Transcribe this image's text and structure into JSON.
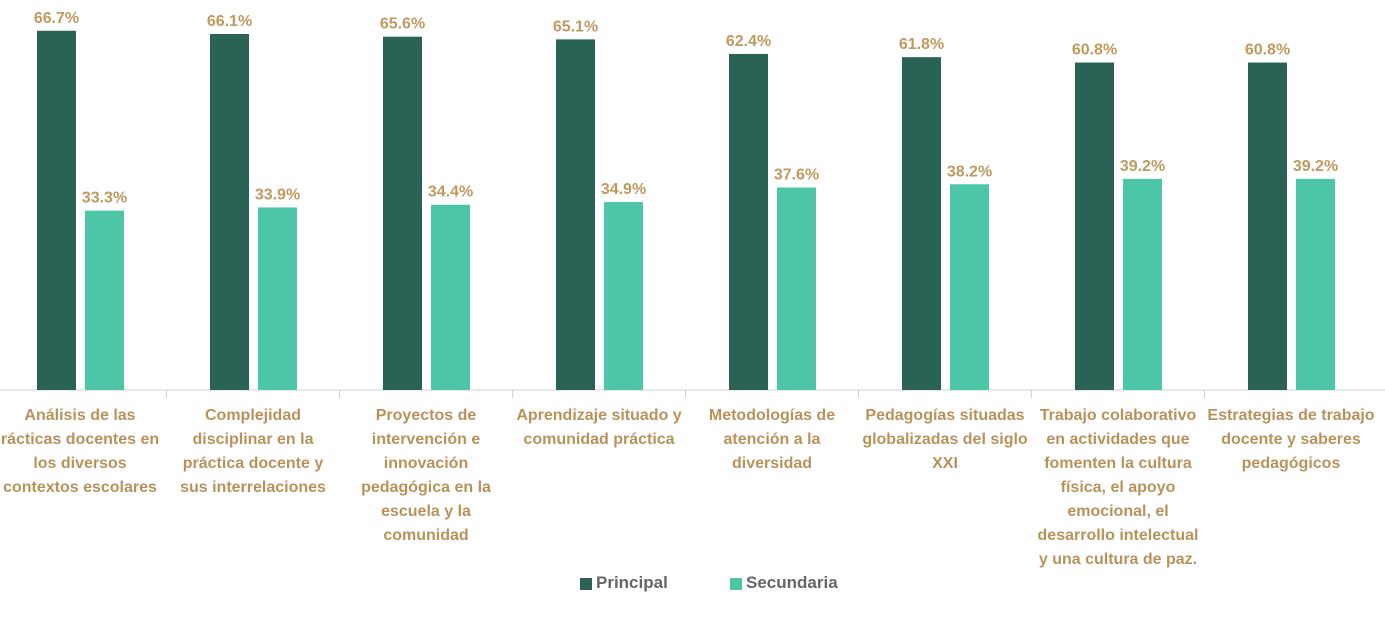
{
  "chart_data": {
    "type": "bar",
    "categories": [
      "Análisis de las rácticas docentes en los diversos contextos escolares",
      "Complejidad disciplinar en la práctica docente y sus interrelaciones",
      "Proyectos de intervención e innovación pedagógica en la escuela y la comunidad",
      "Aprendizaje situado y comunidad práctica",
      "Metodologías de atención a la diversidad",
      "Pedagogías situadas globalizadas del siglo XXI",
      "Trabajo colaborativo en actividades que fomenten la cultura física, el apoyo emocional, el desarrollo intelectual y una cultura de paz.",
      "Estrategias de trabajo docente y saberes pedagógicos"
    ],
    "series": [
      {
        "name": "Principal",
        "color": "#2a6356",
        "values": [
          66.7,
          66.1,
          65.6,
          65.1,
          62.4,
          61.8,
          60.8,
          60.8
        ],
        "value_labels": [
          "66.7%",
          "66.1%",
          "65.6%",
          "65.1%",
          "62.4%",
          "61.8%",
          "60.8%",
          "60.8%"
        ]
      },
      {
        "name": "Secundaria",
        "color": "#4dc6a8",
        "values": [
          33.3,
          33.9,
          34.4,
          34.9,
          37.6,
          38.2,
          39.2,
          39.2
        ],
        "value_labels": [
          "33.3%",
          "33.9%",
          "34.4%",
          "34.9%",
          "37.6%",
          "38.2%",
          "39.2%",
          "39.2%"
        ]
      }
    ],
    "ylim": [
      0,
      70
    ],
    "legend": "bottom"
  }
}
